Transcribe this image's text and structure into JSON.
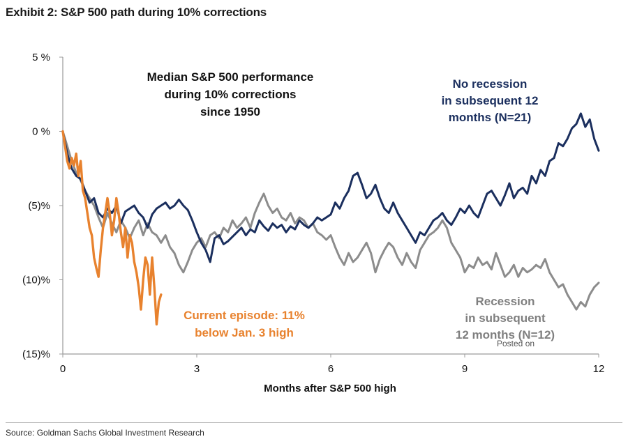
{
  "header": {
    "title": "Exhibit 2: S&P 500 path during 10% corrections"
  },
  "footer": {
    "source": "Source: Goldman Sachs Global Investment Research"
  },
  "watermark": {
    "text": "Posted on"
  },
  "colors": {
    "no_recession": "#1b2f5e",
    "recession": "#8c8c8c",
    "current": "#e8822e",
    "axis": "#9a9a9a"
  },
  "chart_data": {
    "type": "line",
    "xlabel": "Months after S&P 500 high",
    "ylabel": "",
    "xlim": [
      0,
      12
    ],
    "ylim": [
      -15,
      5
    ],
    "x_ticks": [
      0,
      3,
      6,
      9,
      12
    ],
    "x_tick_labels": [
      "0",
      "3",
      "6",
      "9",
      "12"
    ],
    "y_ticks": [
      5,
      0,
      -5,
      -10,
      -15
    ],
    "y_tick_labels": [
      "5 %",
      "0 %",
      "(5)%",
      "(10)%",
      "(15)%"
    ],
    "grid": false,
    "annotations": [
      {
        "id": "median",
        "lines": [
          "Median S&P 500 performance",
          "during 10% corrections",
          "since 1950"
        ],
        "color": "#111111"
      },
      {
        "id": "no_recession",
        "lines": [
          "No recession",
          "in subsequent 12",
          "months (N=21)"
        ],
        "color": "#1b2f5e"
      },
      {
        "id": "recession",
        "lines": [
          "Recession",
          "in subsequent",
          "12 months (N=12)"
        ],
        "color": "#7f7f7f"
      },
      {
        "id": "current",
        "lines": [
          "Current episode: 11%",
          "below Jan. 3 high"
        ],
        "color": "#e8822e"
      }
    ],
    "series": [
      {
        "key": "no_recession",
        "color": "#1b2f5e",
        "x": [
          0,
          0.1,
          0.2,
          0.3,
          0.4,
          0.5,
          0.6,
          0.7,
          0.8,
          0.9,
          1.0,
          1.1,
          1.2,
          1.3,
          1.4,
          1.5,
          1.6,
          1.7,
          1.8,
          1.9,
          2.0,
          2.1,
          2.2,
          2.3,
          2.4,
          2.5,
          2.6,
          2.7,
          2.8,
          2.9,
          3.0,
          3.1,
          3.2,
          3.3,
          3.4,
          3.5,
          3.6,
          3.7,
          3.8,
          3.9,
          4.0,
          4.1,
          4.2,
          4.3,
          4.4,
          4.5,
          4.6,
          4.7,
          4.8,
          4.9,
          5.0,
          5.1,
          5.2,
          5.3,
          5.4,
          5.5,
          5.6,
          5.7,
          5.8,
          5.9,
          6.0,
          6.1,
          6.2,
          6.3,
          6.4,
          6.5,
          6.6,
          6.7,
          6.8,
          6.9,
          7.0,
          7.1,
          7.2,
          7.3,
          7.4,
          7.5,
          7.6,
          7.7,
          7.8,
          7.9,
          8.0,
          8.1,
          8.2,
          8.3,
          8.4,
          8.5,
          8.6,
          8.7,
          8.8,
          8.9,
          9.0,
          9.1,
          9.2,
          9.3,
          9.4,
          9.5,
          9.6,
          9.7,
          9.8,
          9.9,
          10.0,
          10.1,
          10.2,
          10.3,
          10.4,
          10.5,
          10.6,
          10.7,
          10.8,
          10.9,
          11.0,
          11.1,
          11.2,
          11.3,
          11.4,
          11.5,
          11.6,
          11.7,
          11.8,
          11.9,
          12.0
        ],
        "values": [
          0,
          -1.5,
          -2.5,
          -3.0,
          -3.2,
          -4.0,
          -4.8,
          -4.5,
          -5.5,
          -5.8,
          -5.2,
          -5.5,
          -5.0,
          -6.2,
          -5.4,
          -5.2,
          -5.0,
          -5.5,
          -5.8,
          -6.5,
          -5.6,
          -5.2,
          -5.0,
          -4.8,
          -5.2,
          -5.0,
          -4.6,
          -5.0,
          -5.3,
          -6.0,
          -6.8,
          -7.5,
          -8.0,
          -8.8,
          -7.2,
          -7.0,
          -7.6,
          -7.4,
          -7.1,
          -6.8,
          -6.5,
          -7.0,
          -6.6,
          -6.8,
          -6.0,
          -6.4,
          -6.7,
          -6.2,
          -6.5,
          -6.3,
          -6.8,
          -6.4,
          -6.6,
          -6.0,
          -6.3,
          -6.5,
          -6.2,
          -5.8,
          -6.0,
          -5.8,
          -5.6,
          -4.8,
          -5.2,
          -4.5,
          -4.0,
          -3.0,
          -2.8,
          -3.6,
          -4.5,
          -4.2,
          -3.6,
          -4.5,
          -5.2,
          -5.5,
          -4.8,
          -5.5,
          -6.0,
          -6.5,
          -7.0,
          -7.5,
          -6.8,
          -7.0,
          -6.5,
          -6.0,
          -5.8,
          -5.5,
          -6.0,
          -6.3,
          -5.8,
          -5.2,
          -5.5,
          -5.0,
          -5.5,
          -5.8,
          -5.0,
          -4.2,
          -4.0,
          -4.5,
          -5.0,
          -4.3,
          -3.5,
          -4.5,
          -4.0,
          -3.8,
          -4.2,
          -3.0,
          -3.5,
          -2.6,
          -3.0,
          -2.0,
          -1.8,
          -0.8,
          -1.0,
          -0.5,
          0.2,
          0.5,
          1.2,
          0.3,
          0.8,
          -0.5,
          -1.3
        ]
      },
      {
        "key": "recession",
        "color": "#8c8c8c",
        "x": [
          0,
          0.1,
          0.2,
          0.3,
          0.4,
          0.5,
          0.6,
          0.7,
          0.8,
          0.9,
          1.0,
          1.1,
          1.2,
          1.3,
          1.4,
          1.5,
          1.6,
          1.7,
          1.8,
          1.9,
          2.0,
          2.1,
          2.2,
          2.3,
          2.4,
          2.5,
          2.6,
          2.7,
          2.8,
          2.9,
          3.0,
          3.1,
          3.2,
          3.3,
          3.4,
          3.5,
          3.6,
          3.7,
          3.8,
          3.9,
          4.0,
          4.1,
          4.2,
          4.3,
          4.4,
          4.5,
          4.6,
          4.7,
          4.8,
          4.9,
          5.0,
          5.1,
          5.2,
          5.3,
          5.4,
          5.5,
          5.6,
          5.7,
          5.8,
          5.9,
          6.0,
          6.1,
          6.2,
          6.3,
          6.4,
          6.5,
          6.6,
          6.7,
          6.8,
          6.9,
          7.0,
          7.1,
          7.2,
          7.3,
          7.4,
          7.5,
          7.6,
          7.7,
          7.8,
          7.9,
          8.0,
          8.1,
          8.2,
          8.3,
          8.4,
          8.5,
          8.6,
          8.7,
          8.8,
          8.9,
          9.0,
          9.1,
          9.2,
          9.3,
          9.4,
          9.5,
          9.6,
          9.7,
          9.8,
          9.9,
          10.0,
          10.1,
          10.2,
          10.3,
          10.4,
          10.5,
          10.6,
          10.7,
          10.8,
          10.9,
          11.0,
          11.1,
          11.2,
          11.3,
          11.4,
          11.5,
          11.6,
          11.7,
          11.8,
          11.9,
          12.0
        ],
        "values": [
          0,
          -1.0,
          -2.0,
          -2.8,
          -3.3,
          -4.0,
          -4.5,
          -5.0,
          -5.8,
          -6.5,
          -5.5,
          -6.2,
          -6.8,
          -6.0,
          -6.5,
          -7.2,
          -6.5,
          -6.0,
          -7.0,
          -6.2,
          -6.8,
          -7.0,
          -7.5,
          -7.0,
          -7.8,
          -8.2,
          -9.0,
          -9.5,
          -8.8,
          -8.0,
          -7.5,
          -7.2,
          -7.8,
          -7.0,
          -6.8,
          -7.2,
          -6.5,
          -6.8,
          -6.0,
          -6.5,
          -6.2,
          -5.8,
          -6.5,
          -5.5,
          -4.8,
          -4.2,
          -5.0,
          -5.5,
          -5.2,
          -5.8,
          -6.0,
          -5.5,
          -6.2,
          -5.8,
          -6.0,
          -6.5,
          -6.2,
          -6.8,
          -7.0,
          -7.3,
          -7.0,
          -7.8,
          -8.5,
          -9.0,
          -8.2,
          -8.8,
          -8.5,
          -8.0,
          -7.5,
          -8.2,
          -9.5,
          -8.6,
          -8.0,
          -7.5,
          -7.8,
          -8.5,
          -9.0,
          -8.2,
          -8.8,
          -9.2,
          -8.0,
          -7.5,
          -7.0,
          -6.8,
          -6.5,
          -6.0,
          -6.5,
          -7.5,
          -8.0,
          -8.5,
          -9.5,
          -9.0,
          -9.2,
          -8.5,
          -9.0,
          -8.8,
          -9.3,
          -8.2,
          -9.0,
          -9.8,
          -9.5,
          -9.0,
          -9.8,
          -9.2,
          -9.5,
          -9.3,
          -9.0,
          -9.2,
          -8.6,
          -9.5,
          -10.0,
          -10.5,
          -10.3,
          -11.0,
          -11.5,
          -12.0,
          -11.5,
          -11.8,
          -11.0,
          -10.5,
          -10.2
        ]
      },
      {
        "key": "current",
        "color": "#e8822e",
        "x": [
          0,
          0.05,
          0.1,
          0.15,
          0.2,
          0.25,
          0.3,
          0.35,
          0.4,
          0.45,
          0.5,
          0.55,
          0.6,
          0.65,
          0.7,
          0.75,
          0.8,
          0.85,
          0.9,
          0.95,
          1.0,
          1.05,
          1.1,
          1.15,
          1.2,
          1.25,
          1.3,
          1.35,
          1.4,
          1.45,
          1.5,
          1.55,
          1.6,
          1.65,
          1.7,
          1.75,
          1.8,
          1.85,
          1.9,
          1.95,
          2.0,
          2.05,
          2.1,
          2.15,
          2.2
        ],
        "values": [
          0,
          -1.0,
          -2.0,
          -2.5,
          -1.8,
          -2.3,
          -1.5,
          -3.0,
          -2.0,
          -4.0,
          -4.5,
          -5.5,
          -6.5,
          -7.0,
          -8.5,
          -9.2,
          -9.8,
          -8.0,
          -6.5,
          -5.5,
          -4.5,
          -5.5,
          -7.0,
          -6.0,
          -4.5,
          -5.5,
          -6.8,
          -7.8,
          -6.5,
          -8.5,
          -7.0,
          -7.5,
          -8.8,
          -9.5,
          -10.5,
          -12.0,
          -10.0,
          -8.5,
          -9.0,
          -11.0,
          -8.5,
          -10.5,
          -13.0,
          -11.5,
          -11.0
        ]
      }
    ]
  }
}
